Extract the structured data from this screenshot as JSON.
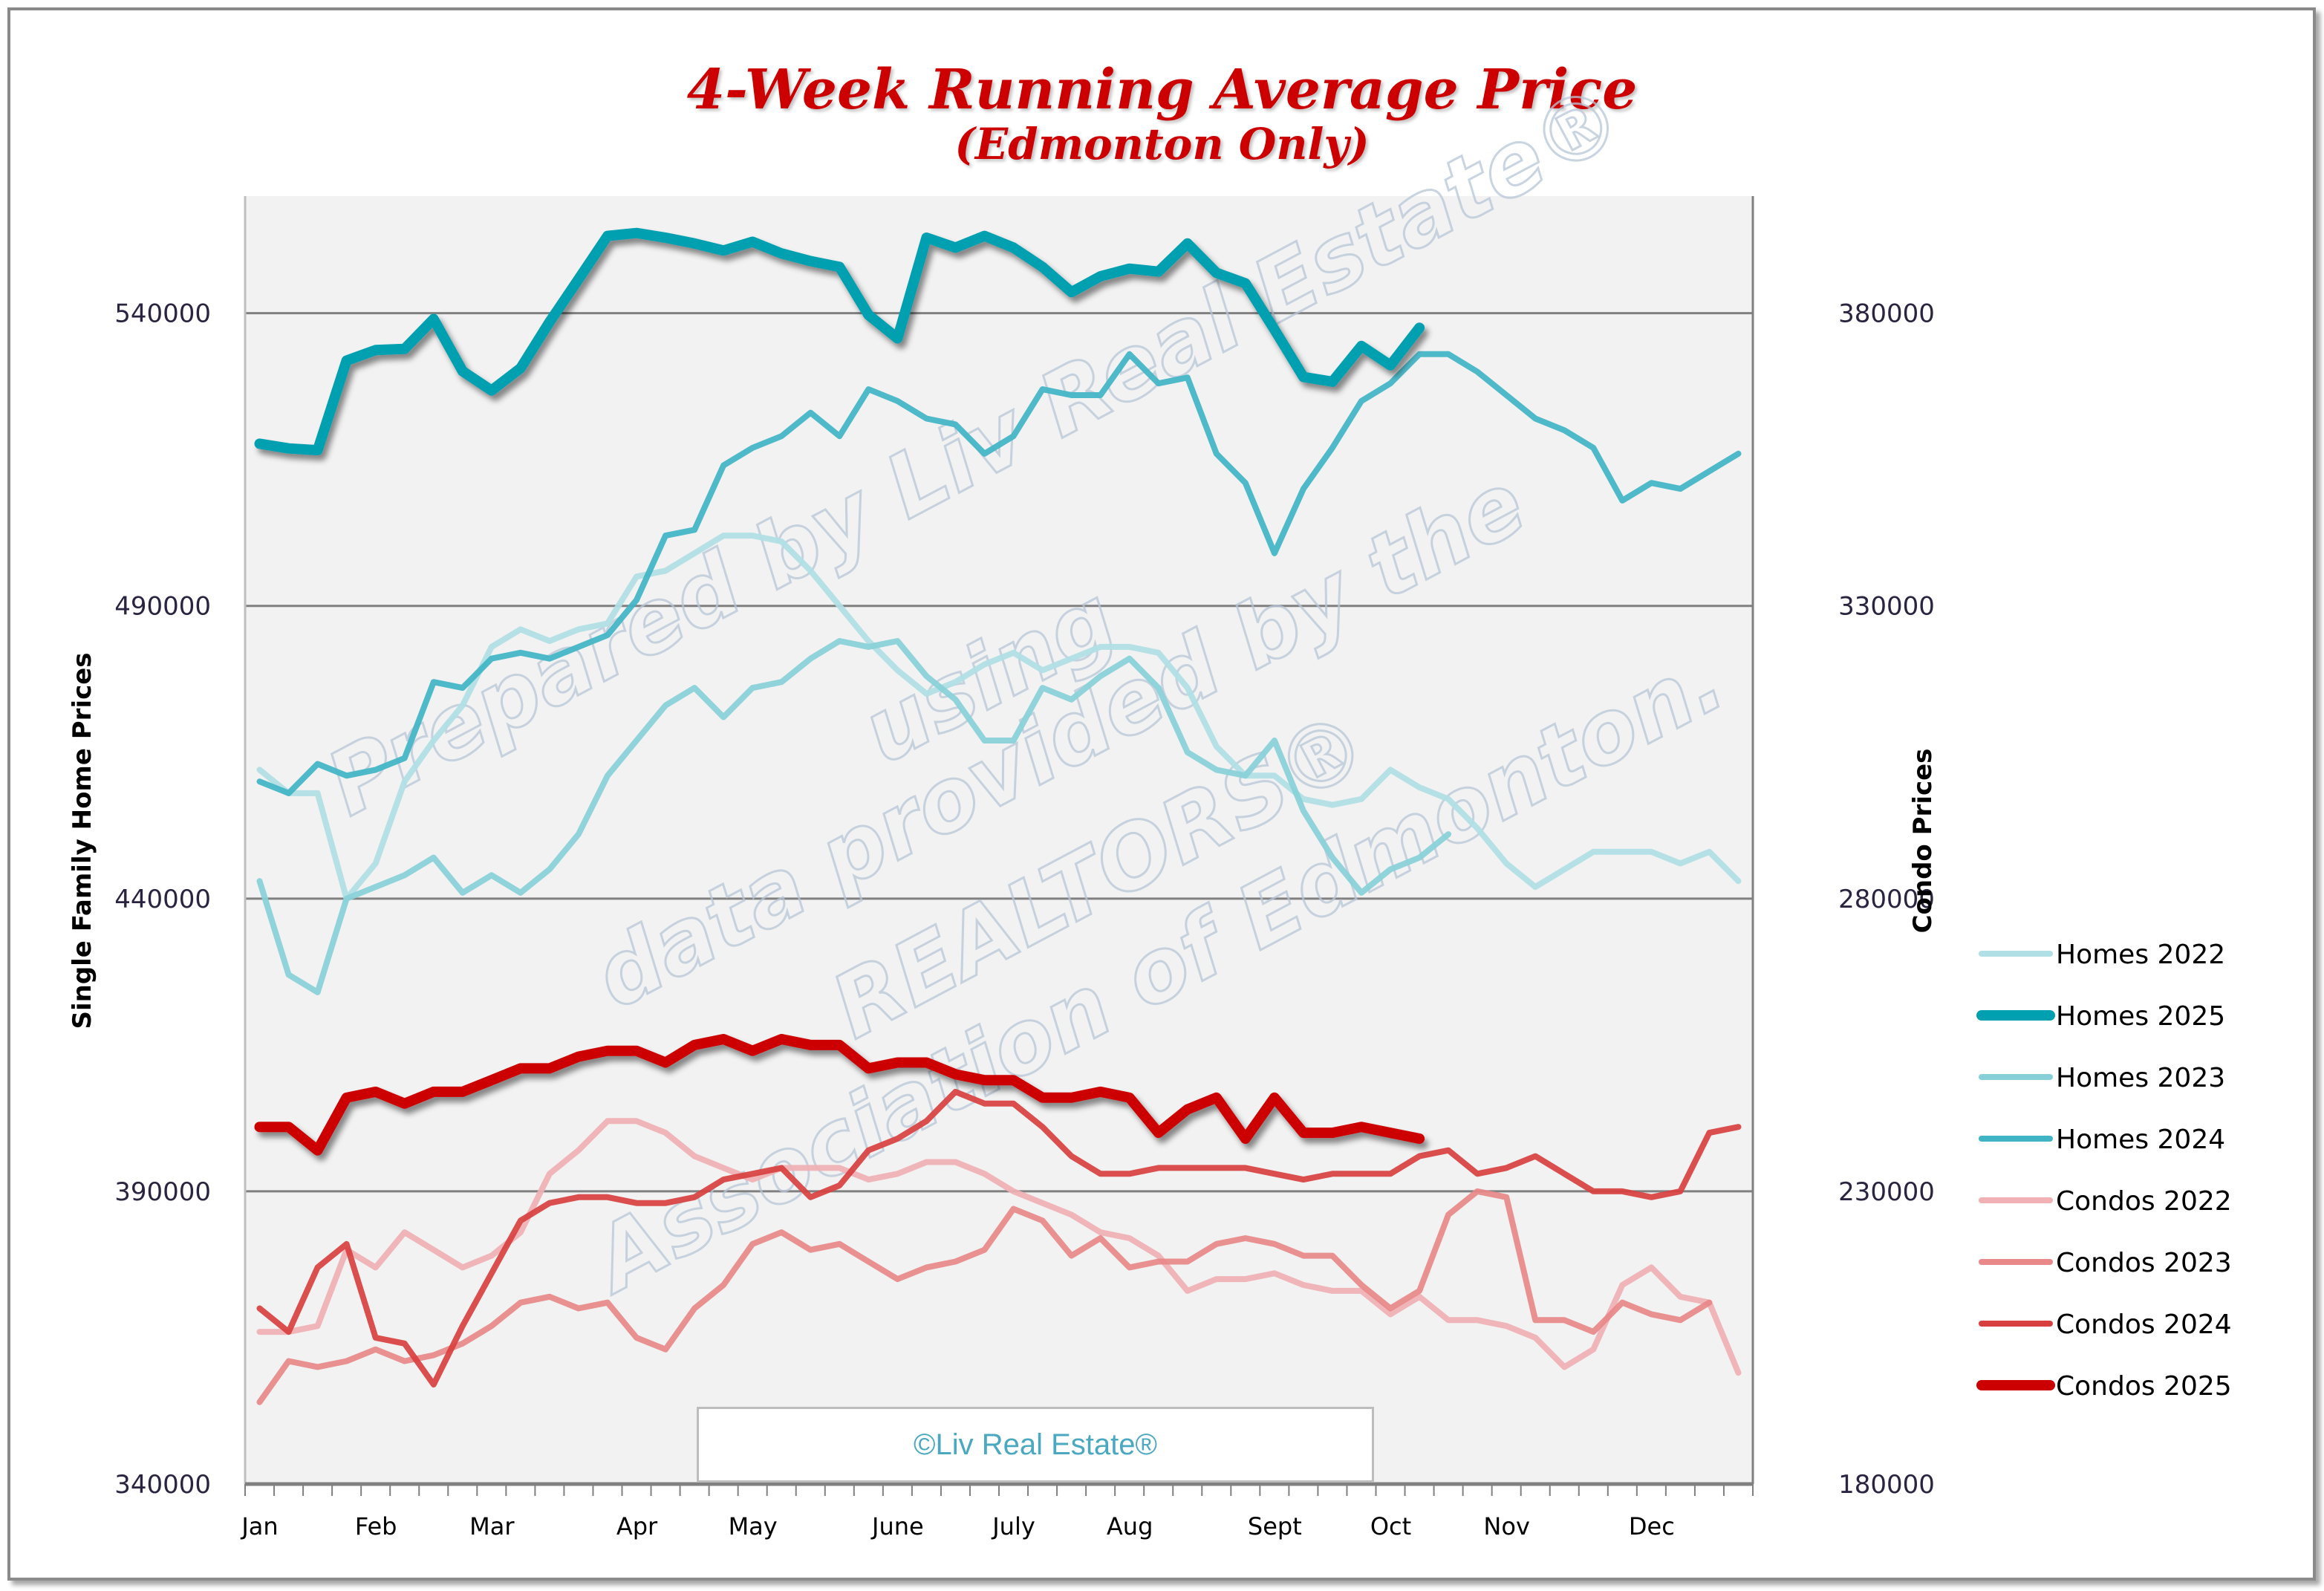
{
  "chart_data": {
    "type": "line",
    "title": "4-Week Running Average Price",
    "subtitle": "(Edmonton Only)",
    "xlabel": "",
    "ylabel": "Single Family Home Prices",
    "y2label": "Condo Prices",
    "x_ticks": [
      "Jan",
      "Feb",
      "Mar",
      "Apr",
      "May",
      "June",
      "July",
      "Aug",
      "Sept",
      "Oct",
      "Nov",
      "Dec"
    ],
    "x_tick_weeks": [
      0,
      4,
      8,
      13,
      17,
      22,
      26,
      30,
      35,
      39,
      43,
      48
    ],
    "weeks": 52,
    "ylim": [
      340000,
      560000
    ],
    "y2lim": [
      180000,
      400000
    ],
    "yticks": [
      340000,
      390000,
      440000,
      490000,
      540000
    ],
    "y2ticks": [
      180000,
      230000,
      280000,
      330000,
      380000
    ],
    "grid": true,
    "legend_position": "right",
    "series": [
      {
        "name": "Homes 2022",
        "axis": "left",
        "color": "#b0dfe5",
        "width": 8,
        "values": [
          462000,
          458000,
          458000,
          440000,
          446000,
          460000,
          467000,
          473000,
          483000,
          486000,
          484000,
          486000,
          487000,
          495000,
          496000,
          499000,
          502000,
          502000,
          501000,
          496000,
          490000,
          484000,
          479000,
          475000,
          477000,
          480000,
          482000,
          479000,
          481000,
          483000,
          483000,
          482000,
          476000,
          466000,
          461000,
          461000,
          457000,
          456000,
          457000,
          462000,
          459000,
          457000,
          452000,
          446000,
          442000,
          445000,
          448000,
          448000,
          448000,
          446000,
          448000,
          443000
        ]
      },
      {
        "name": "Homes 2025",
        "axis": "left",
        "color": "#00a0b0",
        "width": 14,
        "shadow": true,
        "values": [
          517700,
          516900,
          516600,
          531900,
          533700,
          533900,
          539000,
          530100,
          526800,
          530600,
          538500,
          545800,
          553200,
          553700,
          552900,
          551900,
          550700,
          552200,
          550200,
          548900,
          547900,
          539700,
          535700,
          552900,
          551200,
          553200,
          551200,
          547900,
          543600,
          546300,
          547600,
          547100,
          551900,
          546900,
          545100,
          537200,
          529100,
          528300,
          534400,
          531100,
          537500
        ]
      },
      {
        "name": "Homes 2023",
        "axis": "left",
        "color": "#88d0d8",
        "width": 8,
        "values": [
          443000,
          427000,
          424000,
          440000,
          442000,
          444000,
          447000,
          441000,
          444000,
          441000,
          445000,
          451000,
          461000,
          467000,
          473000,
          476000,
          471000,
          476000,
          477000,
          481000,
          484000,
          483000,
          484000,
          478000,
          474000,
          467000,
          467000,
          476000,
          474000,
          478000,
          481000,
          476000,
          465000,
          462000,
          461000,
          467000,
          455000,
          447000,
          441000,
          445000,
          447000,
          451000
        ]
      },
      {
        "name": "Homes 2024",
        "axis": "left",
        "color": "#40b4c4",
        "width": 8,
        "values": [
          460000,
          458000,
          463000,
          461000,
          462000,
          464000,
          477000,
          476000,
          481000,
          482000,
          481000,
          483000,
          485000,
          491000,
          502000,
          503000,
          514000,
          517000,
          519000,
          523000,
          519000,
          527000,
          525000,
          522000,
          521000,
          516000,
          519000,
          527000,
          526000,
          526000,
          533000,
          528000,
          529000,
          516000,
          511000,
          499000,
          510000,
          517000,
          525000,
          528000,
          533000,
          533000,
          530000,
          526000,
          522000,
          520000,
          517000,
          508000,
          511000,
          510000,
          513000,
          516000
        ]
      },
      {
        "name": "Condos 2022",
        "axis": "right",
        "color": "#f0b0b4",
        "width": 8,
        "values": [
          206000,
          206000,
          207000,
          220000,
          217000,
          223000,
          220000,
          217000,
          219000,
          223000,
          233000,
          237000,
          242000,
          242000,
          240000,
          236000,
          234000,
          232000,
          234000,
          234000,
          234000,
          232000,
          233000,
          235000,
          235000,
          233000,
          230000,
          228000,
          226000,
          223000,
          222000,
          219000,
          213000,
          215000,
          215000,
          216000,
          214000,
          213000,
          213000,
          209000,
          212000,
          208000,
          208000,
          207000,
          205000,
          200000,
          203000,
          214000,
          217000,
          212000,
          211000,
          199000
        ]
      },
      {
        "name": "Condos 2023",
        "axis": "right",
        "color": "#e88888",
        "width": 8,
        "values": [
          194000,
          201000,
          200000,
          201000,
          203000,
          201000,
          202000,
          204000,
          207000,
          211000,
          212000,
          210000,
          211000,
          205000,
          203000,
          210000,
          214000,
          221000,
          223000,
          220000,
          221000,
          218000,
          215000,
          217000,
          218000,
          220000,
          227000,
          225000,
          219000,
          222000,
          217000,
          218000,
          218000,
          221000,
          222000,
          221000,
          219000,
          219000,
          214000,
          210000,
          213000,
          226000,
          230000,
          229000,
          208000,
          208000,
          206000,
          211000,
          209000,
          208000,
          211000
        ]
      },
      {
        "name": "Condos 2024",
        "axis": "right",
        "color": "#d84040",
        "width": 8,
        "values": [
          210000,
          206000,
          217000,
          221000,
          205000,
          204000,
          197000,
          207000,
          216000,
          225000,
          228000,
          229000,
          229000,
          228000,
          228000,
          229000,
          232000,
          233000,
          234000,
          229000,
          231000,
          237000,
          239000,
          242000,
          247000,
          245000,
          245000,
          241000,
          236000,
          233000,
          233000,
          234000,
          234000,
          234000,
          234000,
          233000,
          232000,
          233000,
          233000,
          233000,
          236000,
          237000,
          233000,
          234000,
          236000,
          233000,
          230000,
          230000,
          229000,
          230000,
          240000,
          241000
        ]
      },
      {
        "name": "Condos 2025",
        "axis": "right",
        "color": "#cc0000",
        "width": 14,
        "shadow": true,
        "values": [
          241000,
          241000,
          237000,
          246000,
          247000,
          245000,
          247000,
          247000,
          249000,
          251000,
          251000,
          253000,
          254000,
          254000,
          252000,
          255000,
          256000,
          254000,
          256000,
          255000,
          255000,
          251000,
          252000,
          252000,
          250000,
          249000,
          249000,
          246000,
          246000,
          247000,
          246000,
          240000,
          244000,
          246000,
          239000,
          246000,
          240000,
          240000,
          241000,
          240000,
          239000
        ]
      }
    ]
  },
  "header": {
    "title_line1": "4-Week Running Average Price",
    "title_line2": "(Edmonton Only)"
  },
  "axes": {
    "left_title": "Single Family Home Prices",
    "right_title": "Condo Prices",
    "left_ticks": [
      "540000",
      "490000",
      "440000",
      "390000",
      "340000"
    ],
    "right_ticks": [
      "380000",
      "330000",
      "280000",
      "230000",
      "180000"
    ],
    "months": [
      "Jan",
      "Feb",
      "Mar",
      "Apr",
      "May",
      "June",
      "July",
      "Aug",
      "Sept",
      "Oct",
      "Nov",
      "Dec"
    ]
  },
  "legend": [
    "Homes 2022",
    "Homes 2025",
    "Homes 2023",
    "Homes 2024",
    "Condos 2022",
    "Condos 2023",
    "Condos 2024",
    "Condos 2025"
  ],
  "watermark": {
    "lines": [
      "Prepared by Liv Real Estate®",
      "using",
      "data provided by the",
      "REALTORS®",
      "Association of Edmonton."
    ]
  },
  "copyright": "©Liv Real Estate®"
}
